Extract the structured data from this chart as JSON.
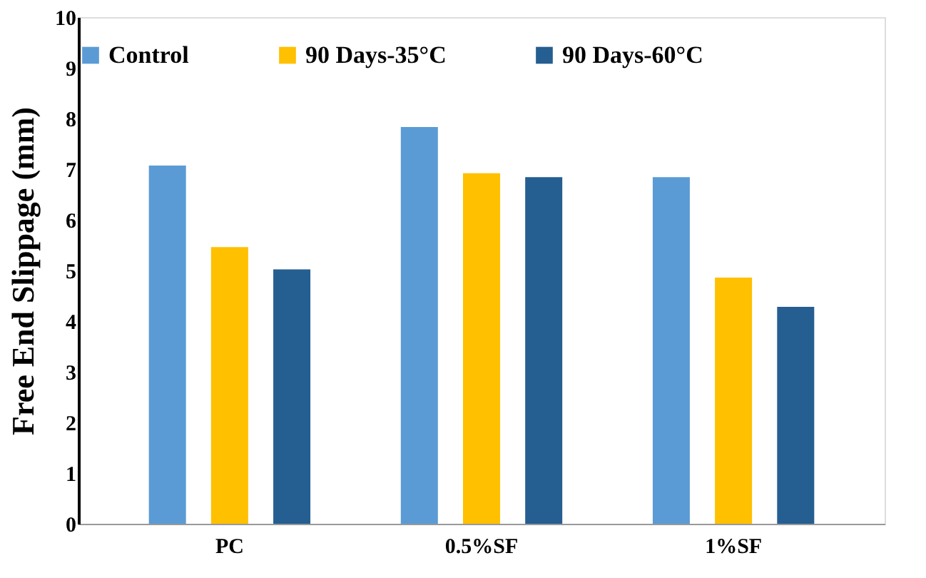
{
  "chart_data": {
    "type": "bar",
    "ylabel": "Free End Slippage (mm)",
    "categories": [
      "PC",
      "0.5%SF",
      "1%SF"
    ],
    "series": [
      {
        "name": "Control",
        "color": "#5b9bd5",
        "values": [
          7.07,
          7.83,
          6.84
        ]
      },
      {
        "name": "90 Days-35°C",
        "color": "#ffc000",
        "values": [
          5.46,
          6.92,
          4.86
        ]
      },
      {
        "name": "90 Days-60°C",
        "color": "#255e91",
        "values": [
          5.02,
          6.84,
          4.28
        ]
      }
    ],
    "ylim": [
      0,
      10
    ],
    "yticks": [
      0,
      1,
      2,
      3,
      4,
      5,
      6,
      7,
      8,
      9,
      10
    ],
    "grid": false,
    "legend": "top"
  }
}
